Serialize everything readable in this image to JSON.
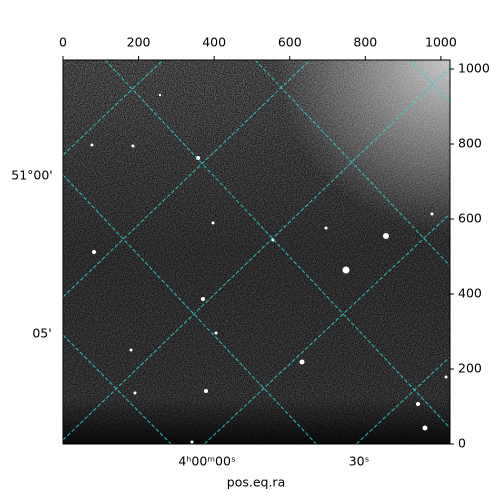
{
  "chart_data": {
    "type": "image",
    "x_label": "pos.eq.ra",
    "xlim": [
      0,
      1024
    ],
    "xticks": [
      0,
      200,
      400,
      600,
      800,
      1000
    ],
    "ylim": [
      0,
      1024
    ],
    "yticks": [
      0,
      200,
      400,
      600,
      800,
      1000
    ],
    "dec_tick_labels": [
      "51°00'",
      "05'"
    ],
    "ra_tick_labels": [
      "4ʰ00ᵐ00ˢ",
      "30ˢ"
    ]
  }
}
